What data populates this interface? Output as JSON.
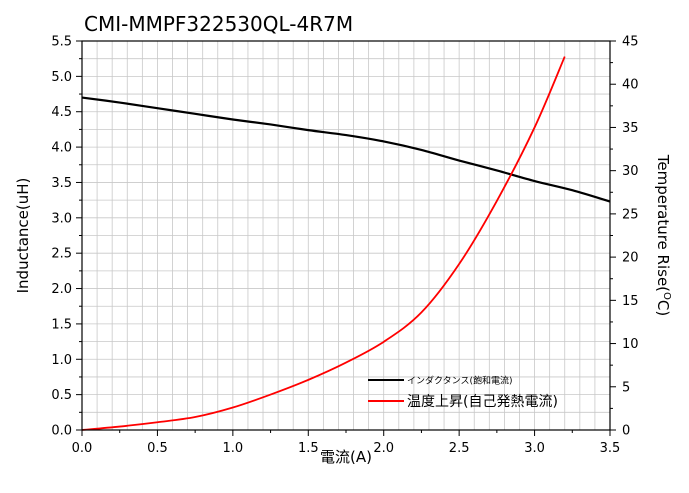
{
  "chart_data": {
    "type": "line",
    "title": "CMI-MMPF322530QL-4R7M",
    "xlabel": "電流(A)",
    "ylabel": "Inductance(uH)",
    "y2label": "Temperature Rise(°C)",
    "y2label_main": "Temperature Rise(",
    "y2label_sup": "O",
    "y2label_tail": "C)",
    "xlim": [
      0,
      3.5
    ],
    "ylim": [
      0,
      5.5
    ],
    "y2lim": [
      0,
      45
    ],
    "xticks": [
      "0.0",
      "0.5",
      "1.0",
      "1.5",
      "2.0",
      "2.5",
      "3.0",
      "3.5"
    ],
    "yticks": [
      "0.0",
      "0.5",
      "1.0",
      "1.5",
      "2.0",
      "2.5",
      "3.0",
      "3.5",
      "4.0",
      "4.5",
      "5.0",
      "5.5"
    ],
    "y2ticks": [
      "0",
      "5",
      "10",
      "15",
      "20",
      "25",
      "30",
      "35",
      "40",
      "45"
    ],
    "grid": true,
    "legend_position": "bottom-right",
    "series": [
      {
        "name": "インダクタンス(飽和電流)",
        "axis": "left",
        "color": "#000000",
        "x": [
          0,
          0.25,
          0.5,
          0.75,
          1.0,
          1.25,
          1.5,
          1.75,
          2.0,
          2.25,
          2.5,
          2.75,
          3.0,
          3.25,
          3.5
        ],
        "y": [
          4.7,
          4.63,
          4.55,
          4.47,
          4.39,
          4.32,
          4.24,
          4.17,
          4.08,
          3.96,
          3.81,
          3.67,
          3.52,
          3.39,
          3.23
        ]
      },
      {
        "name": "温度上昇(自己発熱電流)",
        "axis": "right",
        "color": "#ff0000",
        "x": [
          0,
          0.25,
          0.5,
          0.75,
          1.0,
          1.25,
          1.5,
          1.75,
          2.0,
          2.25,
          2.5,
          2.75,
          3.0,
          3.2
        ],
        "y": [
          0,
          0.4,
          0.9,
          1.5,
          2.6,
          4.1,
          5.8,
          7.8,
          10.2,
          13.6,
          19.2,
          26.5,
          35.0,
          43.2
        ]
      }
    ]
  }
}
